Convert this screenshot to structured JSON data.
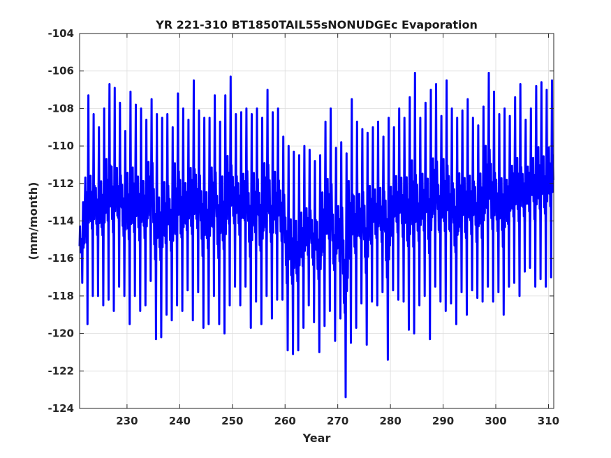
{
  "chart_data": {
    "type": "line",
    "title": "YR 221-310 BT1850TAIL55sNONUDGEc Evaporation",
    "xlabel": "Year",
    "ylabel": "(mm/month)",
    "xlim": [
      221,
      311
    ],
    "ylim": [
      -124,
      -104
    ],
    "xticks": [
      230,
      240,
      250,
      260,
      270,
      280,
      290,
      300,
      310
    ],
    "yticks": [
      -124,
      -122,
      -120,
      -118,
      -116,
      -114,
      -112,
      -110,
      -108,
      -106,
      -104
    ],
    "grid": true,
    "legend": "none",
    "series": [
      {
        "color": "#0000ff",
        "line_width": 3,
        "samples_per_year": 12,
        "annual_max": [
          -113.0,
          -107.3,
          -108.3,
          -109.0,
          -108.0,
          -106.7,
          -106.9,
          -107.7,
          -109.2,
          -107.1,
          -107.8,
          -108.0,
          -108.6,
          -107.5,
          -108.3,
          -108.5,
          -108.3,
          -109.0,
          -107.2,
          -108.0,
          -108.6,
          -106.5,
          -108.1,
          -108.5,
          -108.5,
          -107.3,
          -108.7,
          -107.3,
          -106.3,
          -108.3,
          -108.2,
          -108.0,
          -108.3,
          -108.0,
          -108.5,
          -107.0,
          -108.2,
          -108.0,
          -109.5,
          -110.0,
          -110.3,
          -110.5,
          -110.0,
          -110.2,
          -110.8,
          -110.5,
          -108.7,
          -108.0,
          -110.1,
          -109.8,
          -110.4,
          -107.5,
          -108.7,
          -109.1,
          -109.3,
          -109.0,
          -108.7,
          -109.5,
          -108.5,
          -109.0,
          -108.0,
          -108.5,
          -107.4,
          -106.1,
          -108.5,
          -107.7,
          -107.0,
          -106.7,
          -108.4,
          -106.5,
          -108.0,
          -108.5,
          -108.1,
          -107.5,
          -108.5,
          -108.9,
          -107.9,
          -106.1,
          -107.1,
          -108.3,
          -108.0,
          -108.4,
          -107.4,
          -106.7,
          -108.6,
          -108.0,
          -106.8,
          -106.6,
          -107.0,
          -106.5
        ],
        "annual_min": [
          -117.3,
          -119.5,
          -118.0,
          -118.0,
          -118.5,
          -118.2,
          -118.8,
          -117.5,
          -118.0,
          -119.5,
          -118.0,
          -118.8,
          -118.5,
          -117.2,
          -120.3,
          -120.2,
          -119.0,
          -119.3,
          -118.5,
          -118.8,
          -117.7,
          -119.3,
          -117.8,
          -119.7,
          -119.5,
          -118.0,
          -119.5,
          -120.0,
          -118.5,
          -117.5,
          -118.5,
          -117.5,
          -119.7,
          -118.3,
          -119.5,
          -118.0,
          -119.2,
          -118.2,
          -118.2,
          -120.9,
          -121.1,
          -120.9,
          -119.7,
          -118.5,
          -119.4,
          -121.0,
          -119.6,
          -118.8,
          -120.4,
          -119.2,
          -123.4,
          -120.5,
          -119.7,
          -118.4,
          -120.6,
          -118.3,
          -118.5,
          -117.8,
          -121.4,
          -117.7,
          -118.2,
          -118.3,
          -119.8,
          -120.0,
          -118.5,
          -118.0,
          -120.3,
          -117.5,
          -118.3,
          -118.8,
          -118.4,
          -119.5,
          -117.8,
          -119.0,
          -117.7,
          -118.1,
          -118.3,
          -117.5,
          -118.3,
          -117.8,
          -119.0,
          -117.5,
          -117.3,
          -118.0,
          -116.7,
          -116.5,
          -117.5,
          -117.1,
          -117.5,
          -117.0
        ]
      }
    ]
  }
}
